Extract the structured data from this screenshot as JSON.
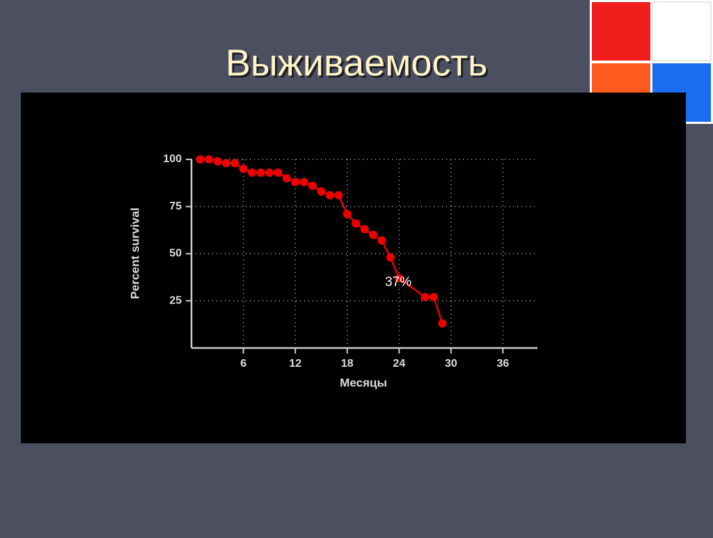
{
  "chart_data": {
    "type": "line",
    "title": "Выживаемость",
    "xlabel": "Месяцы",
    "ylabel": "Percent survival",
    "annotation": "37%",
    "xlim": [
      0,
      40
    ],
    "xticks": [
      6,
      12,
      18,
      24,
      30,
      36
    ],
    "ylim": [
      0,
      100
    ],
    "yticks": [
      25,
      50,
      75,
      100
    ],
    "grid": true,
    "series": [
      {
        "color": "#ee0000",
        "x": [
          1,
          2,
          3,
          4,
          5,
          6,
          7,
          8,
          9,
          10,
          11,
          12,
          13,
          14,
          15,
          16,
          17,
          18,
          19,
          20,
          21,
          22,
          23,
          24,
          27,
          28,
          29
        ],
        "values": [
          100,
          100,
          99,
          98,
          98,
          95,
          93,
          93,
          93,
          93,
          90,
          88,
          88,
          86,
          83,
          81,
          81,
          71,
          66,
          63,
          60,
          57,
          48,
          37,
          27,
          27,
          13
        ]
      }
    ]
  }
}
